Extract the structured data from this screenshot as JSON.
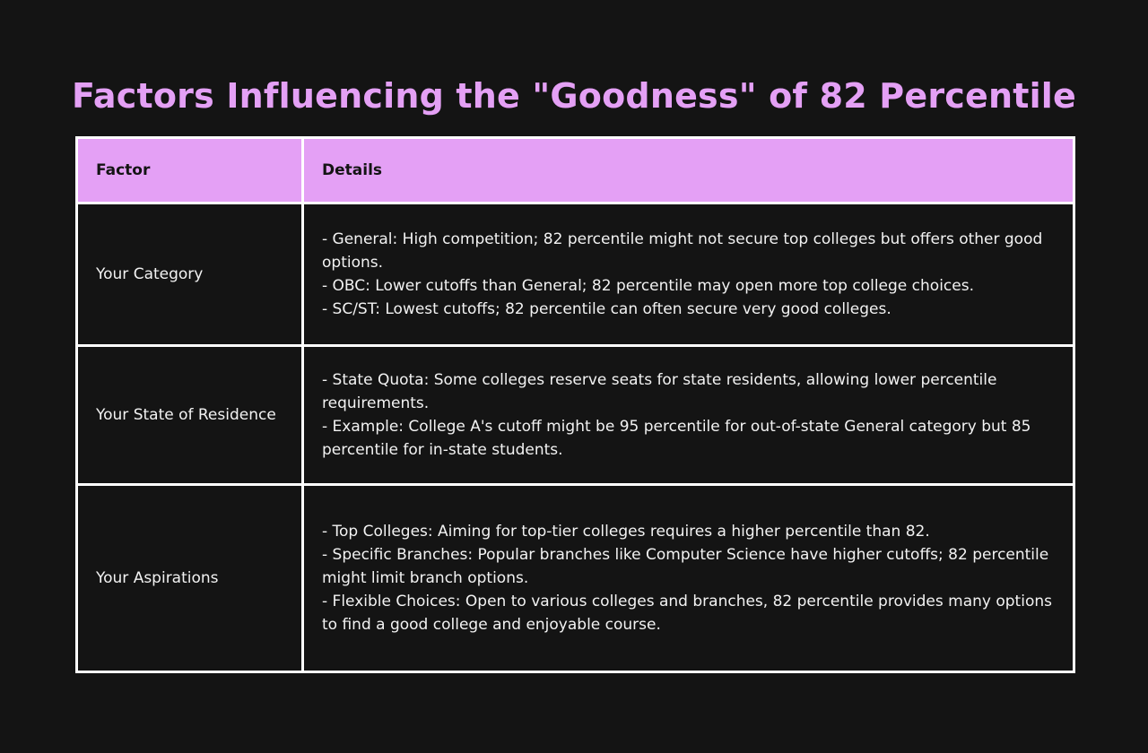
{
  "title": "Factors Influencing the \"Goodness\" of 82 Percentile",
  "table": {
    "headers": [
      "Factor",
      "Details"
    ],
    "rows": [
      {
        "factor": "Your Category",
        "details": [
          "- General: High competition; 82 percentile might not secure top colleges but offers other good options.",
          "- OBC: Lower cutoffs than General; 82 percentile may open more top college choices.",
          "- SC/ST: Lowest cutoffs; 82 percentile can often secure very good colleges."
        ]
      },
      {
        "factor": "Your State of Residence",
        "details": [
          "- State Quota: Some colleges reserve seats for state residents, allowing lower percentile requirements.",
          "- Example: College A's cutoff might be 95 percentile for out-of-state General category but 85 percentile for in-state students."
        ]
      },
      {
        "factor": "Your Aspirations",
        "details": [
          "- Top Colleges: Aiming for top-tier colleges requires a higher percentile than 82.",
          "- Specific Branches: Popular branches like Computer Science have higher cutoffs; 82 percentile might limit branch options.",
          "- Flexible Choices: Open to various colleges and branches, 82 percentile provides many options to find a good college and enjoyable course."
        ]
      }
    ]
  },
  "colors": {
    "background": "#141414",
    "accent": "#e4a0f5",
    "border": "#ffffff",
    "text": "#f2f2f2"
  }
}
